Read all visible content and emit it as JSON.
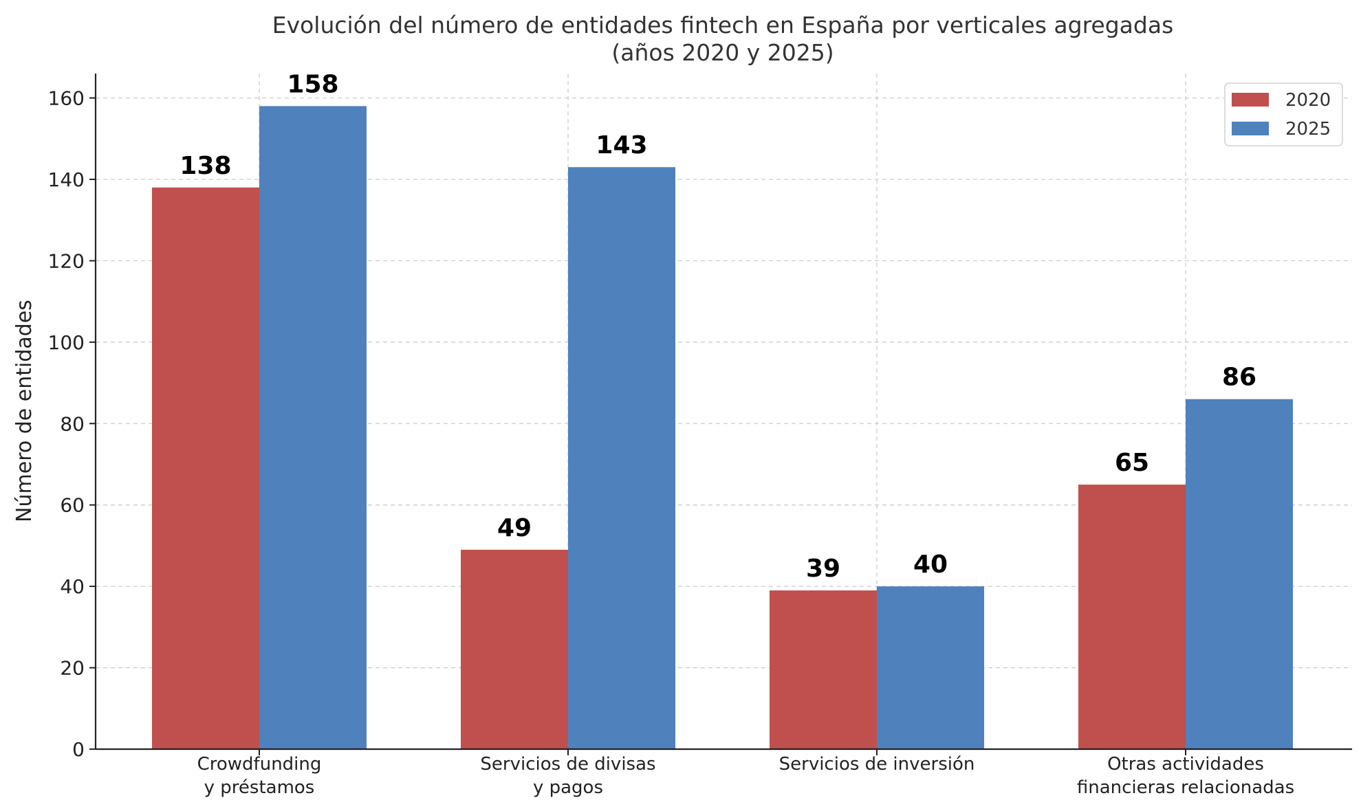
{
  "chart_data": {
    "type": "bar",
    "title": "Evolución del número de entidades fintech en España por verticales agregadas",
    "subtitle": "(años 2020 y 2025)",
    "xlabel": "",
    "ylabel": "Número de entidades",
    "categories": [
      [
        "Crowdfunding",
        "y préstamos"
      ],
      [
        "Servicios de divisas",
        "y pagos"
      ],
      [
        "Servicios de inversión"
      ],
      [
        "Otras actividades",
        "financieras relacionadas"
      ]
    ],
    "series": [
      {
        "name": "2020",
        "color": "#c0504d",
        "values": [
          138,
          49,
          39,
          65
        ]
      },
      {
        "name": "2025",
        "color": "#4f81bd",
        "values": [
          158,
          143,
          40,
          86
        ]
      }
    ],
    "ylim": [
      0,
      166
    ],
    "yticks": [
      0,
      20,
      40,
      60,
      80,
      100,
      120,
      140,
      160
    ],
    "grid": true,
    "legend_position": "top-right",
    "data_labels": true
  }
}
